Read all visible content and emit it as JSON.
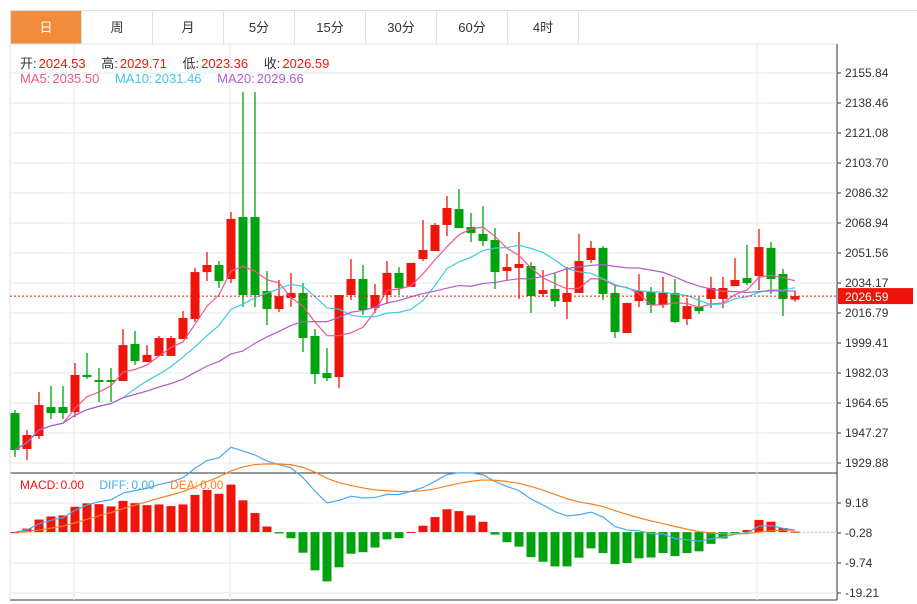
{
  "tabs": [
    {
      "label": "日",
      "active": true
    },
    {
      "label": "周"
    },
    {
      "label": "月"
    },
    {
      "label": "5分"
    },
    {
      "label": "15分"
    },
    {
      "label": "30分"
    },
    {
      "label": "60分"
    },
    {
      "label": "4时"
    }
  ],
  "ohlc": {
    "open_label": "开:",
    "open": "2024.53",
    "high_label": "高:",
    "high": "2029.71",
    "low_label": "低:",
    "low": "2023.36",
    "close_label": "收:",
    "close": "2026.59"
  },
  "ma": {
    "ma5_label": "MA5:",
    "ma5": "2035.50",
    "ma10_label": "MA10:",
    "ma10": "2031.46",
    "ma20_label": "MA20:",
    "ma20": "2029.66"
  },
  "macd": {
    "macd_label": "MACD:",
    "macd": "0.00",
    "diff_label": "DIFF:",
    "diff": "0.00",
    "dea_label": "DEA:",
    "dea": "0.00"
  },
  "colors": {
    "up": "#f0150a",
    "down": "#00a30e",
    "ma5": "#f0558a",
    "ma10": "#40c8e0",
    "ma20": "#b05cc8",
    "diff": "#4aa8f0",
    "dea": "#f58220",
    "active_tab": "#f28c3d"
  },
  "chart_data": {
    "type": "candlestick",
    "current_price": "2026.59",
    "price_ticks": [
      "2155.84",
      "2138.46",
      "2121.08",
      "2103.70",
      "2086.32",
      "2068.94",
      "2051.56",
      "2034.17",
      "2016.79",
      "1999.41",
      "1982.03",
      "1964.65",
      "1947.27",
      "1929.88"
    ],
    "price_range": [
      1929.88,
      2155.84
    ],
    "macd_ticks": [
      "9.18",
      "-0.28",
      "-9.74",
      "-19.21"
    ],
    "macd_range": [
      -19.21,
      9.18
    ],
    "candles_ochl_note": "[open, close, high, low]",
    "candles": [
      [
        1958.8,
        1937.4,
        1960.6,
        1933.3
      ],
      [
        1938.0,
        1946.1,
        1949.0,
        1931.6
      ],
      [
        1945.5,
        1963.5,
        1971.0,
        1943.8
      ],
      [
        1962.3,
        1958.8,
        1974.5,
        1955.4
      ],
      [
        1962.3,
        1958.8,
        1974.5,
        1955.4
      ],
      [
        1959.4,
        1980.9,
        1987.8,
        1956.5
      ],
      [
        1980.9,
        1979.7,
        1993.6,
        1978.6
      ],
      [
        1978.0,
        1976.8,
        1984.9,
        1965.2
      ],
      [
        1978.0,
        1976.8,
        1984.9,
        1965.2
      ],
      [
        1977.4,
        1998.2,
        2007.5,
        1977.4
      ],
      [
        1998.8,
        1989.0,
        2006.4,
        1986.7
      ],
      [
        1988.4,
        1992.5,
        1998.2,
        1988.4
      ],
      [
        1991.9,
        2002.3,
        2003.5,
        1991.9
      ],
      [
        1991.9,
        2002.3,
        2003.5,
        1991.9
      ],
      [
        2001.7,
        2013.9,
        2017.9,
        2001.7
      ],
      [
        2013.3,
        2040.5,
        2042.9,
        2011.6
      ],
      [
        2040.5,
        2044.6,
        2052.1,
        2035.3
      ],
      [
        2044.6,
        2035.3,
        2046.9,
        2031.3
      ],
      [
        2036.5,
        2071.3,
        2075.3,
        2034.2
      ],
      [
        2072.4,
        2027.2,
        2144.8,
        2020.3
      ],
      [
        2072.4,
        2027.2,
        2144.8,
        2020.3
      ],
      [
        2029.5,
        2019.1,
        2041.1,
        2009.8
      ],
      [
        2019.1,
        2026.6,
        2035.9,
        2017.4
      ],
      [
        2025.5,
        2028.4,
        2040.0,
        2020.3
      ],
      [
        2028.4,
        2002.3,
        2034.2,
        1994.2
      ],
      [
        2003.5,
        1981.4,
        2007.5,
        1975.6
      ],
      [
        1982.0,
        1979.1,
        1996.5,
        1977.4
      ],
      [
        1979.7,
        2027.2,
        2027.2,
        1973.3
      ],
      [
        2027.2,
        2036.5,
        2048.1,
        2024.3
      ],
      [
        2036.5,
        2018.5,
        2044.6,
        2015.6
      ],
      [
        2019.7,
        2027.2,
        2033.6,
        2016.8
      ],
      [
        2027.2,
        2040.0,
        2046.9,
        2022.0
      ],
      [
        2040.0,
        2031.3,
        2043.4,
        2027.2
      ],
      [
        2031.9,
        2045.8,
        2045.8,
        2031.9
      ],
      [
        2048.1,
        2053.3,
        2070.7,
        2046.9
      ],
      [
        2052.7,
        2067.8,
        2068.9,
        2052.7
      ],
      [
        2067.8,
        2077.6,
        2084.6,
        2061.4
      ],
      [
        2077.0,
        2066.0,
        2088.6,
        2066.0
      ],
      [
        2066.6,
        2063.1,
        2074.7,
        2057.9
      ],
      [
        2062.6,
        2058.5,
        2078.8,
        2055.6
      ],
      [
        2059.1,
        2040.5,
        2066.0,
        2030.7
      ],
      [
        2041.1,
        2043.4,
        2051.0,
        2035.9
      ],
      [
        2042.9,
        2045.2,
        2063.7,
        2024.9
      ],
      [
        2044.0,
        2026.6,
        2046.3,
        2016.8
      ],
      [
        2027.8,
        2030.1,
        2041.7,
        2026.1
      ],
      [
        2030.7,
        2023.7,
        2040.0,
        2020.3
      ],
      [
        2023.2,
        2028.4,
        2043.4,
        2013.3
      ],
      [
        2028.4,
        2046.9,
        2062.6,
        2028.4
      ],
      [
        2047.5,
        2054.5,
        2058.5,
        2045.8
      ],
      [
        2054.5,
        2027.8,
        2055.6,
        2024.3
      ],
      [
        2028.4,
        2005.8,
        2033.0,
        2002.3
      ],
      [
        2005.2,
        2022.6,
        2022.6,
        2005.2
      ],
      [
        2023.7,
        2029.5,
        2039.4,
        2020.3
      ],
      [
        2029.0,
        2021.4,
        2031.9,
        2016.8
      ],
      [
        2021.4,
        2028.4,
        2037.7,
        2019.7
      ],
      [
        2028.4,
        2011.6,
        2036.5,
        2011.0
      ],
      [
        2013.3,
        2020.8,
        2025.5,
        2009.8
      ],
      [
        2020.3,
        2017.9,
        2026.1,
        2016.2
      ],
      [
        2024.9,
        2031.3,
        2037.7,
        2019.7
      ],
      [
        2024.9,
        2031.3,
        2037.7,
        2019.7
      ],
      [
        2032.4,
        2035.9,
        2048.7,
        2032.4
      ],
      [
        2037.1,
        2034.2,
        2056.2,
        2033.0
      ],
      [
        2038.2,
        2055.0,
        2065.5,
        2030.1
      ],
      [
        2054.5,
        2036.5,
        2057.9,
        2027.8
      ],
      [
        2039.4,
        2024.9,
        2042.3,
        2015.0
      ],
      [
        2024.53,
        2026.59,
        2029.71,
        2023.36
      ]
    ]
  }
}
